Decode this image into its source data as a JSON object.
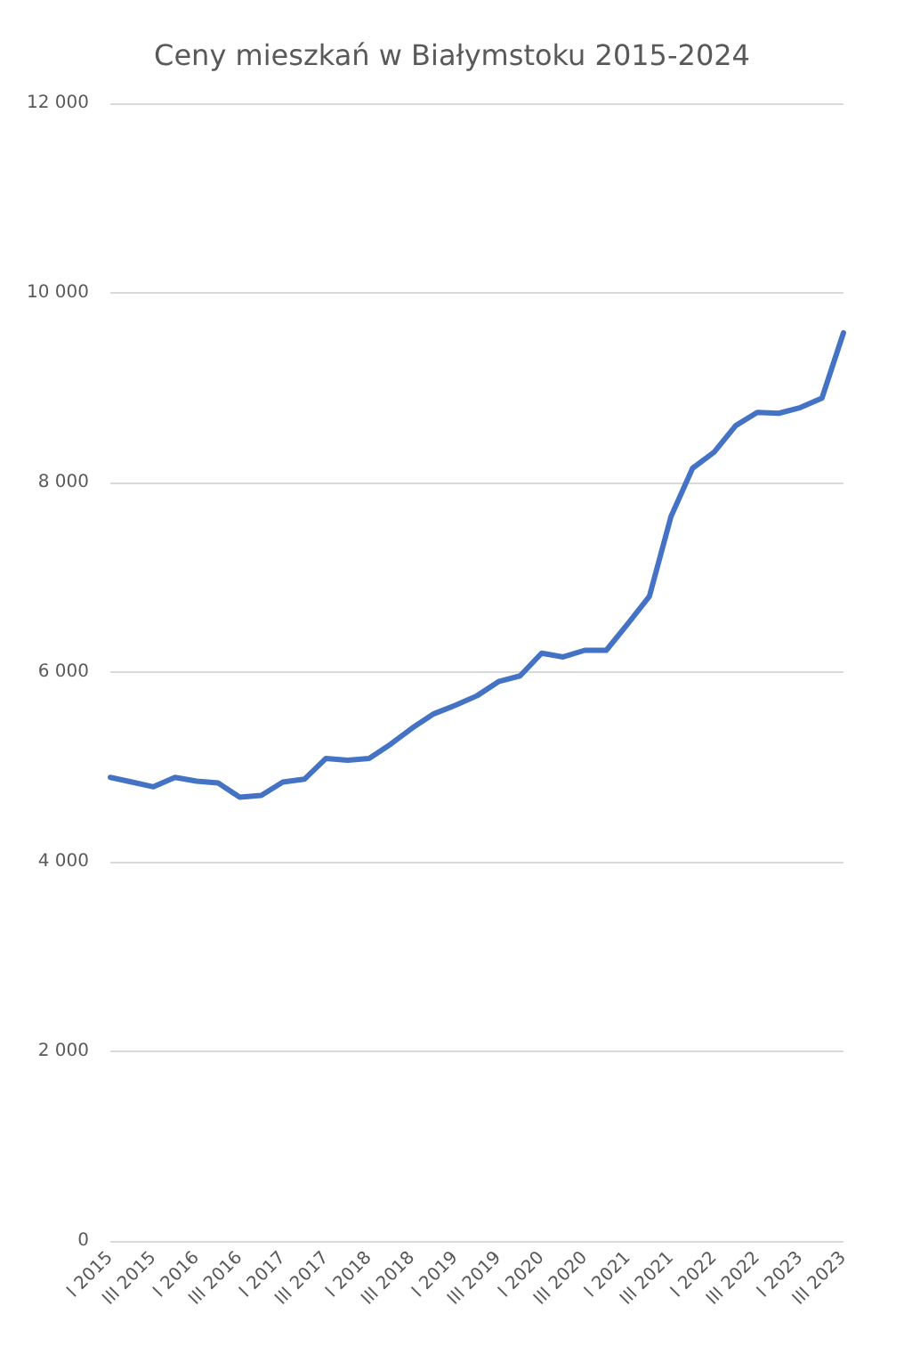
{
  "chart_data": {
    "type": "line",
    "title": "Ceny mieszkań w Białymstoku 2015-2024",
    "categories": [
      "I 2015",
      null,
      "III 2015",
      null,
      "I 2016",
      null,
      "III 2016",
      null,
      "I 2017",
      null,
      "III 2017",
      null,
      "I 2018",
      null,
      "III 2018",
      null,
      "I 2019",
      null,
      "III 2019",
      null,
      "I 2020",
      null,
      "III 2020",
      null,
      "I 2021",
      null,
      "III 2021",
      null,
      "I 2022",
      null,
      "III 2022",
      null,
      "I 2023",
      null,
      "III 2023"
    ],
    "series": [
      {
        "color": "#4472c4",
        "values": [
          4890,
          4840,
          4790,
          4890,
          4850,
          4830,
          4680,
          4700,
          4840,
          4870,
          5090,
          5070,
          5090,
          5240,
          5410,
          5560,
          5650,
          5750,
          5900,
          5960,
          6200,
          6160,
          6230,
          6230,
          6510,
          6800,
          7640,
          8150,
          8320,
          8600,
          8740,
          8730,
          8790,
          8890,
          9580
        ]
      }
    ],
    "ylim": [
      0,
      12000
    ],
    "yticks": [
      {
        "value": 0,
        "label": "0"
      },
      {
        "value": 2000,
        "label": "2 000"
      },
      {
        "value": 4000,
        "label": "4 000"
      },
      {
        "value": 6000,
        "label": "6 000"
      },
      {
        "value": 8000,
        "label": "8 000"
      },
      {
        "value": 10000,
        "label": "10 000"
      },
      {
        "value": 12000,
        "label": "12 000"
      }
    ],
    "grid": "y",
    "marker": "none",
    "line_style": "solid"
  }
}
